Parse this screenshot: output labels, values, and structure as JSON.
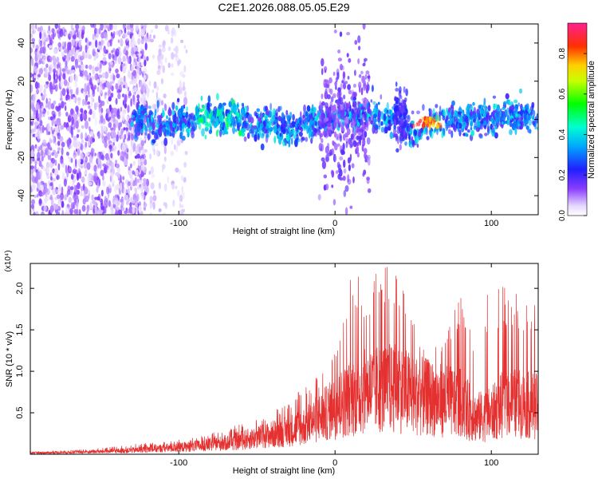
{
  "figure_title": "C2E1.2026.088.05.05.E29",
  "colors": {
    "snr_line": "#e53030",
    "axis": "#000000",
    "background": "#ffffff"
  },
  "chart_data": [
    {
      "type": "heatmap",
      "title": "",
      "xlabel": "Height of straight line (km)",
      "ylabel": "Frequency (Hz)",
      "xlim": [
        -195,
        130
      ],
      "ylim": [
        -50,
        50
      ],
      "x_ticks": [
        -100,
        0,
        100
      ],
      "y_ticks": [
        -40,
        -20,
        0,
        20,
        40
      ],
      "colorbar": {
        "label": "Normalized spectral amplitude",
        "range": [
          0,
          0.95
        ],
        "ticks": [
          0.0,
          0.2,
          0.4,
          0.6,
          0.8
        ],
        "tick_labels": [
          "0.0",
          "0.2",
          "0.4",
          "0.6",
          "0.8"
        ],
        "colormap": "rainbow (white-violet-blue-cyan-green-yellow-red-magenta)"
      },
      "features": [
        {
          "x_range": [
            -195,
            -130
          ],
          "description": "broadband noise across -50 to 50 Hz",
          "amplitude": 0.05
        },
        {
          "x_range": [
            -130,
            130
          ],
          "description": "narrow band centered near 0 Hz",
          "amplitude": 0.2
        },
        {
          "x_range": [
            50,
            70
          ],
          "frequency": -2,
          "amplitude": 0.85
        },
        {
          "x_range": [
            -10,
            20
          ],
          "description": "broadened spread from about -40 to 45 Hz",
          "amplitude": 0.1
        }
      ],
      "grid": false
    },
    {
      "type": "line",
      "title": "",
      "xlabel": "Height of straight line (km)",
      "ylabel": "SNR (10 * v/v)",
      "y_multiplier": "(x10⁴)",
      "xlim": [
        -195,
        130
      ],
      "ylim": [
        0,
        2.3
      ],
      "x_ticks": [
        -100,
        0,
        100
      ],
      "y_ticks": [
        0.5,
        1.0,
        1.5,
        2.0
      ],
      "y_tick_labels": [
        "0.5",
        "1.0",
        "1.5",
        "2.0"
      ],
      "series": [
        {
          "color": "#e53030",
          "x": [
            -195,
            -170,
            -150,
            -130,
            -110,
            -90,
            -70,
            -50,
            -30,
            -20,
            -10,
            0,
            10,
            20,
            30,
            40,
            50,
            60,
            70,
            80,
            90,
            100,
            110,
            120,
            130
          ],
          "values": [
            0.02,
            0.03,
            0.04,
            0.06,
            0.09,
            0.12,
            0.17,
            0.25,
            0.35,
            0.42,
            0.55,
            0.7,
            0.85,
            0.95,
            1.0,
            1.0,
            0.9,
            0.85,
            0.8,
            0.78,
            0.55,
            0.6,
            0.8,
            0.75,
            0.72
          ],
          "peak_values": [
            0.03,
            0.05,
            0.07,
            0.12,
            0.15,
            0.2,
            0.3,
            0.45,
            0.6,
            0.85,
            0.95,
            1.4,
            2.2,
            2.1,
            2.25,
            2.3,
            1.6,
            1.3,
            1.4,
            1.9,
            1.6,
            2.1,
            2.0,
            1.9,
            1.8
          ]
        }
      ],
      "grid": false
    }
  ]
}
